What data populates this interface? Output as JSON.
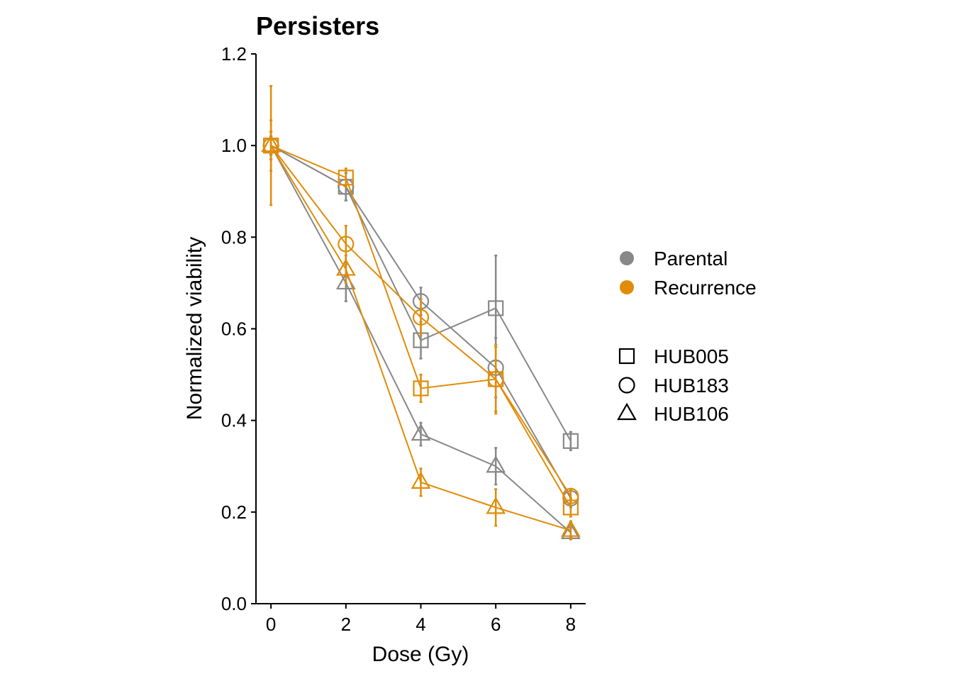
{
  "colors": {
    "parental": "#888888",
    "recurrence": "#E08C0A"
  },
  "legend": {
    "group_items": [
      {
        "label": "Parental",
        "group": "parental"
      },
      {
        "label": "Recurrence",
        "group": "recurrence"
      }
    ],
    "shape_items": [
      {
        "label": "HUB005",
        "shape": "square"
      },
      {
        "label": "HUB183",
        "shape": "circle"
      },
      {
        "label": "HUB106",
        "shape": "triangle"
      }
    ]
  },
  "chart_data": {
    "type": "line",
    "title": "Persisters",
    "xlabel": "Dose (Gy)",
    "ylabel": "Normalized viability",
    "x": [
      0,
      2,
      4,
      6,
      8
    ],
    "x_ticks": [
      "0",
      "2",
      "4",
      "6",
      "8"
    ],
    "xlim": [
      -0.4,
      8.4
    ],
    "y_ticks": [
      "0.0",
      "0.2",
      "0.4",
      "0.6",
      "0.8",
      "1.0",
      "1.2"
    ],
    "ylim": [
      0,
      1.2
    ],
    "grid": false,
    "legend_position": "right",
    "series": [
      {
        "group": "parental",
        "line": "HUB005",
        "shape": "square",
        "values": [
          1.0,
          0.91,
          0.575,
          0.645,
          0.355
        ],
        "errors": [
          0.03,
          0.03,
          0.04,
          0.115,
          0.02
        ]
      },
      {
        "group": "parental",
        "line": "HUB183",
        "shape": "circle",
        "values": [
          1.0,
          0.91,
          0.66,
          0.515,
          0.23
        ],
        "errors": [
          0.02,
          0.03,
          0.03,
          0.065,
          0.02
        ]
      },
      {
        "group": "parental",
        "line": "HUB106",
        "shape": "triangle",
        "values": [
          1.0,
          0.7,
          0.37,
          0.3,
          0.155
        ],
        "errors": [
          0.02,
          0.04,
          0.025,
          0.04,
          0.01
        ]
      },
      {
        "group": "recurrence",
        "line": "HUB005",
        "shape": "square",
        "values": [
          1.0,
          0.93,
          0.47,
          0.49,
          0.21
        ],
        "errors": [
          0.13,
          0.02,
          0.03,
          0.07,
          0.02
        ]
      },
      {
        "group": "recurrence",
        "line": "HUB183",
        "shape": "circle",
        "values": [
          1.0,
          0.785,
          0.625,
          0.49,
          0.235
        ],
        "errors": [
          0.055,
          0.04,
          0.04,
          0.075,
          0.015
        ]
      },
      {
        "group": "recurrence",
        "line": "HUB106",
        "shape": "triangle",
        "values": [
          1.0,
          0.73,
          0.265,
          0.21,
          0.16
        ],
        "errors": [
          0.03,
          0.03,
          0.03,
          0.04,
          0.02
        ]
      }
    ]
  }
}
